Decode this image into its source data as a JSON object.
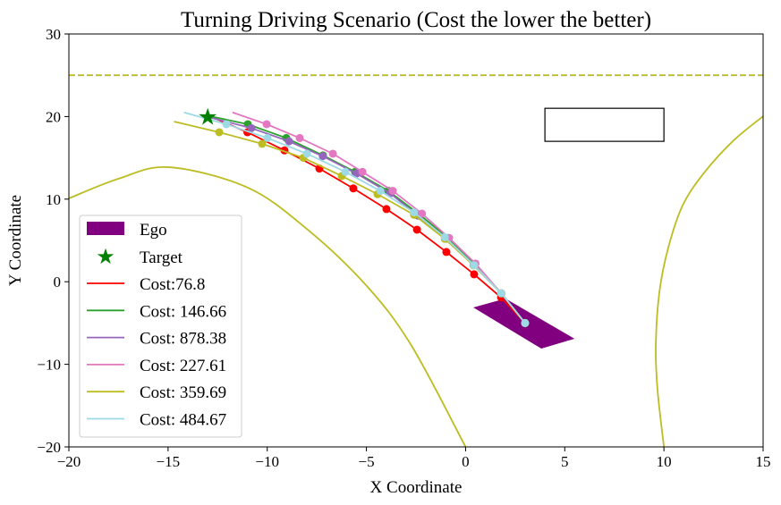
{
  "chart_data": {
    "type": "line",
    "title": "Turning Driving Scenario (Cost the lower the better)",
    "xlabel": "X Coordinate",
    "ylabel": "Y Coordinate",
    "xlim": [
      -20,
      15
    ],
    "ylim": [
      -20,
      30
    ],
    "xticks": [
      -20,
      -15,
      -10,
      -5,
      0,
      5,
      10,
      15
    ],
    "yticks": [
      -20,
      -10,
      0,
      10,
      20,
      30
    ],
    "legend_position": "lower-left",
    "ego": {
      "label": "Ego",
      "color": "#800080",
      "polygon": [
        [
          0.39,
          -3.12
        ],
        [
          2.01,
          -2.03
        ],
        [
          5.49,
          -6.9
        ],
        [
          3.82,
          -8.1
        ]
      ]
    },
    "target": {
      "label": "Target",
      "color": "#008000",
      "x": -13,
      "y": 20
    },
    "obstacle_rect": {
      "x": [
        4,
        10
      ],
      "y": [
        17,
        21
      ],
      "color": "#000000"
    },
    "boundary_dashed": {
      "y": 25,
      "color": "#bcbd22"
    },
    "boundary_curves": [
      {
        "color": "#bcbd22",
        "points": [
          [
            -20,
            10.09
          ],
          [
            -17.5,
            12.47
          ],
          [
            -14.95,
            13.87
          ],
          [
            -10.98,
            11.39
          ],
          [
            -7.96,
            6.3
          ],
          [
            -4.98,
            -0.52
          ],
          [
            -2.72,
            -7.77
          ],
          [
            0,
            -20
          ]
        ]
      },
      {
        "color": "#bcbd22",
        "points": [
          [
            15,
            20.04
          ],
          [
            13.51,
            17.1
          ],
          [
            12.03,
            13.2
          ],
          [
            10.94,
            9.22
          ],
          [
            10.22,
            4.13
          ],
          [
            9.77,
            -1.28
          ],
          [
            9.59,
            -7.77
          ],
          [
            9.68,
            -13.18
          ],
          [
            10,
            -20
          ]
        ]
      }
    ],
    "series": [
      {
        "name": "Cost:76.8",
        "color": "#ff0000",
        "points": [
          [
            3,
            -5
          ],
          [
            1.79,
            -1.9
          ],
          [
            0.43,
            0.9
          ],
          [
            -0.97,
            3.6
          ],
          [
            -2.45,
            6.3
          ],
          [
            -3.99,
            8.8
          ],
          [
            -5.66,
            11.3
          ],
          [
            -7.37,
            13.7
          ],
          [
            -9.13,
            15.9
          ],
          [
            -11.0,
            18.1
          ],
          [
            -12.96,
            20.1
          ]
        ],
        "markers": [
          1,
          1,
          1,
          1,
          1,
          1,
          1,
          1,
          1,
          1,
          0
        ]
      },
      {
        "name": "Cost: 146.66",
        "color": "#2ca02c",
        "points": [
          [
            3,
            -5
          ],
          [
            1.8,
            -1.4
          ],
          [
            0.45,
            2.1
          ],
          [
            -0.9,
            5.3
          ],
          [
            -2.3,
            8.1
          ],
          [
            -3.9,
            11.0
          ],
          [
            -5.57,
            13.3
          ],
          [
            -7.19,
            15.3
          ],
          [
            -9.04,
            17.4
          ],
          [
            -10.98,
            19.07
          ],
          [
            -13,
            20.1
          ]
        ],
        "markers": [
          1,
          1,
          1,
          1,
          1,
          1,
          1,
          1,
          1,
          1,
          0
        ]
      },
      {
        "name": "Cost: 878.38",
        "color": "#9467bd",
        "points": [
          [
            3,
            -5
          ],
          [
            1.8,
            -1.4
          ],
          [
            0.4,
            2.0
          ],
          [
            -1.0,
            5.2
          ],
          [
            -2.4,
            8.0
          ],
          [
            -3.8,
            10.7
          ],
          [
            -5.5,
            13.1
          ],
          [
            -7.2,
            15.2
          ],
          [
            -8.9,
            17.0
          ],
          [
            -10.8,
            18.6
          ],
          [
            -12.9,
            19.9
          ]
        ],
        "markers": [
          1,
          1,
          1,
          1,
          1,
          1,
          1,
          1,
          1,
          1,
          0
        ]
      },
      {
        "name": "Cost: 227.61",
        "color": "#e377c2",
        "points": [
          [
            3,
            -5
          ],
          [
            1.8,
            -1.4
          ],
          [
            0.5,
            2.2
          ],
          [
            -0.83,
            5.3
          ],
          [
            -2.2,
            8.25
          ],
          [
            -3.67,
            11.0
          ],
          [
            -5.2,
            13.3
          ],
          [
            -6.69,
            15.5
          ],
          [
            -8.36,
            17.4
          ],
          [
            -10.03,
            19.07
          ],
          [
            -11.75,
            20.5
          ]
        ],
        "markers": [
          1,
          1,
          1,
          1,
          1,
          1,
          1,
          1,
          1,
          1,
          0
        ]
      },
      {
        "name": "Cost: 359.69",
        "color": "#bcbd22",
        "points": [
          [
            3,
            -5
          ],
          [
            1.8,
            -1.4
          ],
          [
            0.4,
            2.0
          ],
          [
            -1.05,
            5.2
          ],
          [
            -2.6,
            8.1
          ],
          [
            -4.44,
            10.6
          ],
          [
            -6.24,
            12.8
          ],
          [
            -8.18,
            15.0
          ],
          [
            -10.26,
            16.7
          ],
          [
            -12.42,
            18.1
          ],
          [
            -14.7,
            19.4
          ]
        ],
        "markers": [
          1,
          1,
          1,
          1,
          1,
          1,
          1,
          1,
          1,
          1,
          0
        ]
      },
      {
        "name": "Cost: 484.67",
        "color": "#9edae5",
        "points": [
          [
            3,
            -5
          ],
          [
            1.8,
            -1.4
          ],
          [
            0.43,
            2.0
          ],
          [
            -1.05,
            5.4
          ],
          [
            -2.6,
            8.4
          ],
          [
            -4.3,
            11.0
          ],
          [
            -6.06,
            13.3
          ],
          [
            -8.0,
            15.5
          ],
          [
            -9.99,
            17.4
          ],
          [
            -12.06,
            19.07
          ],
          [
            -14.2,
            20.5
          ]
        ],
        "markers": [
          1,
          1,
          1,
          1,
          1,
          1,
          1,
          1,
          1,
          1,
          0
        ]
      }
    ]
  }
}
